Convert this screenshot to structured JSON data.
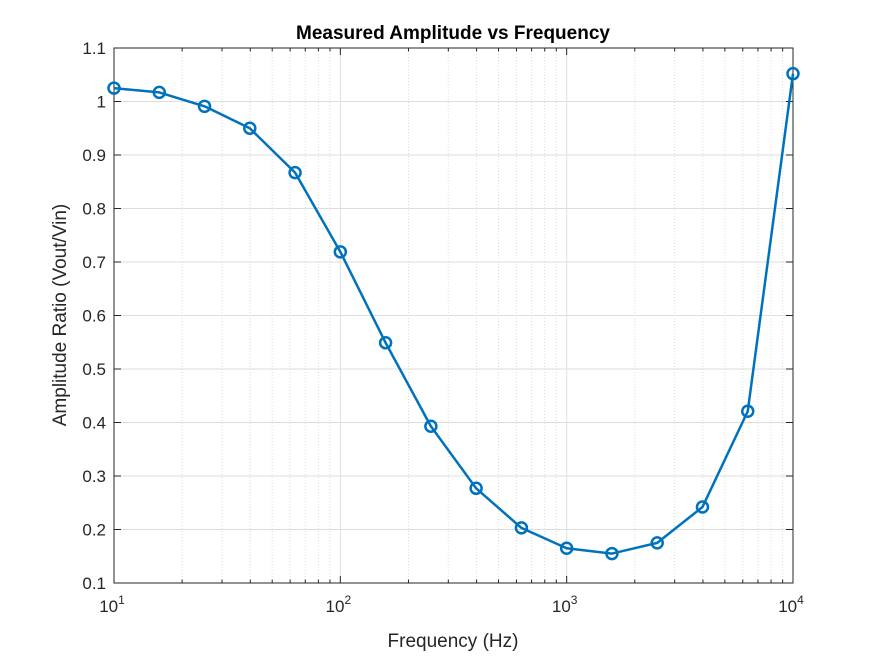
{
  "chart_data": {
    "type": "line",
    "title": "Measured Amplitude vs Frequency",
    "xlabel": "Frequency (Hz)",
    "ylabel": "Amplitude Ratio (Vout/Vin)",
    "xscale": "log",
    "xlim": [
      10,
      10000
    ],
    "ylim": [
      0.1,
      1.1
    ],
    "xticks": [
      {
        "value": 10,
        "base": "10",
        "exp": "1"
      },
      {
        "value": 100,
        "base": "10",
        "exp": "2"
      },
      {
        "value": 1000,
        "base": "10",
        "exp": "3"
      },
      {
        "value": 10000,
        "base": "10",
        "exp": "4"
      }
    ],
    "yticks": [
      {
        "value": 0.1,
        "label": "0.1"
      },
      {
        "value": 0.2,
        "label": "0.2"
      },
      {
        "value": 0.3,
        "label": "0.3"
      },
      {
        "value": 0.4,
        "label": "0.4"
      },
      {
        "value": 0.5,
        "label": "0.5"
      },
      {
        "value": 0.6,
        "label": "0.6"
      },
      {
        "value": 0.7,
        "label": "0.7"
      },
      {
        "value": 0.8,
        "label": "0.8"
      },
      {
        "value": 0.9,
        "label": "0.9"
      },
      {
        "value": 1.0,
        "label": "1"
      },
      {
        "value": 1.1,
        "label": "1.1"
      }
    ],
    "grid": true,
    "minor_grid": true,
    "marker": "circle",
    "series": [
      {
        "color": "#0072BD",
        "x": [
          10,
          15.85,
          25.12,
          39.81,
          63.1,
          100,
          158.5,
          251.2,
          398.1,
          631,
          1000,
          1585,
          2512,
          3981,
          6310,
          10000
        ],
        "y": [
          1.025,
          1.017,
          0.991,
          0.95,
          0.867,
          0.719,
          0.549,
          0.393,
          0.277,
          0.203,
          0.165,
          0.155,
          0.175,
          0.242,
          0.421,
          1.052
        ]
      }
    ]
  }
}
